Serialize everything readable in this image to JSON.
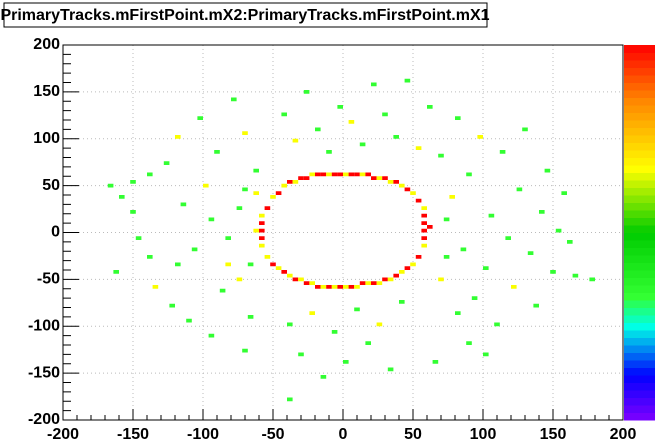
{
  "chart_data": {
    "type": "heatmap",
    "title": "PrimaryTracks.mFirstPoint.mX2:PrimaryTracks.mFirstPoint.mX1",
    "xlim": [
      -200,
      200
    ],
    "ylim": [
      -200,
      200
    ],
    "zlim": [
      0,
      3
    ],
    "bin_size": 4,
    "xticks": [
      -200,
      -150,
      -100,
      -50,
      0,
      50,
      100,
      150,
      200
    ],
    "yticks": [
      -200,
      -150,
      -100,
      -50,
      0,
      50,
      100,
      150,
      200
    ],
    "grid": true,
    "x": [
      -56,
      -52,
      -48,
      -44,
      -40,
      -36,
      -32,
      -28,
      -24,
      -20,
      -16,
      -12,
      -8,
      -4,
      0,
      4,
      8,
      12,
      16,
      20,
      24,
      28,
      32,
      36,
      40,
      44,
      48,
      52,
      56,
      -60,
      -60,
      -60,
      -60,
      -60,
      56,
      56,
      56,
      56,
      56,
      60,
      -64,
      -56,
      -52,
      -48,
      -44,
      -40,
      -36,
      -32,
      -28,
      -24,
      -20,
      -16,
      -12,
      -8,
      -4,
      0,
      4,
      8,
      12,
      16,
      20,
      24,
      28,
      32,
      36,
      40,
      44,
      48,
      52,
      -168,
      -160,
      -152,
      -164,
      -148,
      -140,
      -136,
      -128,
      -124,
      -120,
      -116,
      -112,
      -108,
      -104,
      -100,
      -96,
      -92,
      -88,
      -84,
      -80,
      -76,
      -72,
      -72,
      -68,
      -64,
      -84,
      -96,
      -120,
      -140,
      -152,
      -44,
      -36,
      -28,
      -20,
      -12,
      -4,
      4,
      12,
      20,
      28,
      36,
      44,
      52,
      60,
      -40,
      -32,
      -24,
      -16,
      -8,
      0,
      8,
      16,
      24,
      32,
      40,
      -40,
      68,
      76,
      80,
      84,
      88,
      92,
      96,
      100,
      104,
      108,
      112,
      116,
      120,
      124,
      128,
      132,
      136,
      140,
      144,
      148,
      152,
      156,
      160,
      164,
      176,
      68,
      72,
      80,
      88,
      100,
      64,
      72,
      -68,
      -76,
      -64,
      -72
    ],
    "y": [
      24,
      36,
      40,
      48,
      52,
      52,
      56,
      56,
      60,
      60,
      60,
      60,
      60,
      60,
      60,
      60,
      60,
      60,
      60,
      56,
      56,
      56,
      52,
      52,
      48,
      44,
      40,
      32,
      24,
      16,
      8,
      0,
      -8,
      -16,
      16,
      8,
      0,
      -8,
      -16,
      4,
      0,
      -28,
      -36,
      -40,
      -44,
      -48,
      -52,
      -52,
      -56,
      -56,
      -60,
      -60,
      -60,
      -60,
      -60,
      -60,
      -60,
      -60,
      -56,
      -56,
      -56,
      -56,
      -52,
      -52,
      -48,
      -44,
      -40,
      -36,
      -28,
      48,
      36,
      20,
      -44,
      -8,
      60,
      -60,
      72,
      -80,
      100,
      28,
      -96,
      -20,
      120,
      48,
      -112,
      84,
      -64,
      -8,
      140,
      24,
      -128,
      104,
      -92,
      64,
      -36,
      12,
      -36,
      -28,
      52,
      124,
      96,
      148,
      108,
      84,
      132,
      116,
      92,
      156,
      124,
      100,
      160,
      88,
      132,
      -100,
      -132,
      -88,
      -156,
      -108,
      -140,
      -84,
      -120,
      -100,
      -148,
      -76,
      -180,
      80,
      36,
      120,
      -20,
      60,
      -72,
      100,
      -40,
      16,
      -100,
      84,
      -8,
      -60,
      44,
      108,
      -24,
      -80,
      20,
      64,
      -44,
      0,
      40,
      -12,
      -48,
      -52,
      -52,
      -28,
      -88,
      -120,
      -132,
      -140,
      12,
      -36,
      -52,
      40,
      44
    ],
    "values": [
      3,
      2,
      3,
      2,
      3,
      2,
      3,
      3,
      2,
      3,
      3,
      2,
      3,
      3,
      2,
      3,
      3,
      2,
      3,
      3,
      2,
      3,
      2,
      3,
      2,
      3,
      2,
      3,
      2,
      2,
      3,
      3,
      3,
      2,
      3,
      3,
      3,
      3,
      2,
      3,
      2,
      2,
      3,
      2,
      3,
      2,
      3,
      2,
      3,
      2,
      3,
      2,
      3,
      2,
      3,
      2,
      3,
      2,
      3,
      2,
      3,
      2,
      3,
      2,
      3,
      2,
      3,
      2,
      3,
      1,
      1,
      1,
      1,
      1,
      1,
      2,
      1,
      1,
      2,
      1,
      1,
      1,
      1,
      2,
      1,
      1,
      1,
      1,
      1,
      1,
      1,
      2,
      1,
      1,
      2,
      1,
      1,
      1,
      1,
      1,
      2,
      1,
      1,
      1,
      1,
      2,
      1,
      1,
      1,
      1,
      1,
      2,
      1,
      1,
      1,
      2,
      1,
      1,
      1,
      1,
      1,
      2,
      1,
      1,
      1,
      1,
      2,
      1,
      1,
      1,
      1,
      2,
      1,
      1,
      1,
      1,
      1,
      2,
      1,
      1,
      1,
      1,
      1,
      1,
      1,
      1,
      1,
      1,
      1,
      1,
      2,
      1,
      1,
      1,
      1,
      1,
      1,
      1,
      2,
      2,
      1
    ]
  }
}
